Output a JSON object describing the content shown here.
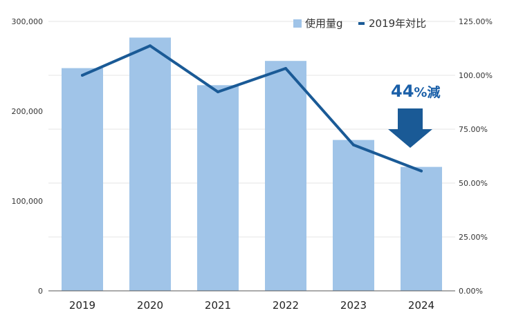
{
  "chart_data": {
    "type": "bar",
    "categories": [
      "2019",
      "2020",
      "2021",
      "2022",
      "2023",
      "2024"
    ],
    "series": [
      {
        "name": "使用量g",
        "type": "bar",
        "axis": "left",
        "values": [
          248000,
          282000,
          229000,
          256000,
          168000,
          138000
        ],
        "color": "#a0c4e8"
      },
      {
        "name": "2019年対比",
        "type": "line",
        "axis": "right",
        "values": [
          100.0,
          113.7,
          92.3,
          103.2,
          67.7,
          55.6
        ],
        "color": "#1a5a96"
      }
    ],
    "left_axis": {
      "ylim": [
        0,
        300000
      ],
      "ticks": [
        "0",
        "100,000",
        "200,000",
        "300,000"
      ]
    },
    "right_axis": {
      "ylim": [
        0,
        125
      ],
      "ticks": [
        "0.00%",
        "25.00%",
        "50.00%",
        "75.00%",
        "100.00%",
        "125.00%"
      ]
    },
    "grid": true,
    "legend_position": "top-right",
    "annotation": {
      "number": "44",
      "unit": "%減",
      "color": "#1a5fa8",
      "arrow_color": "#1a5a96"
    }
  }
}
